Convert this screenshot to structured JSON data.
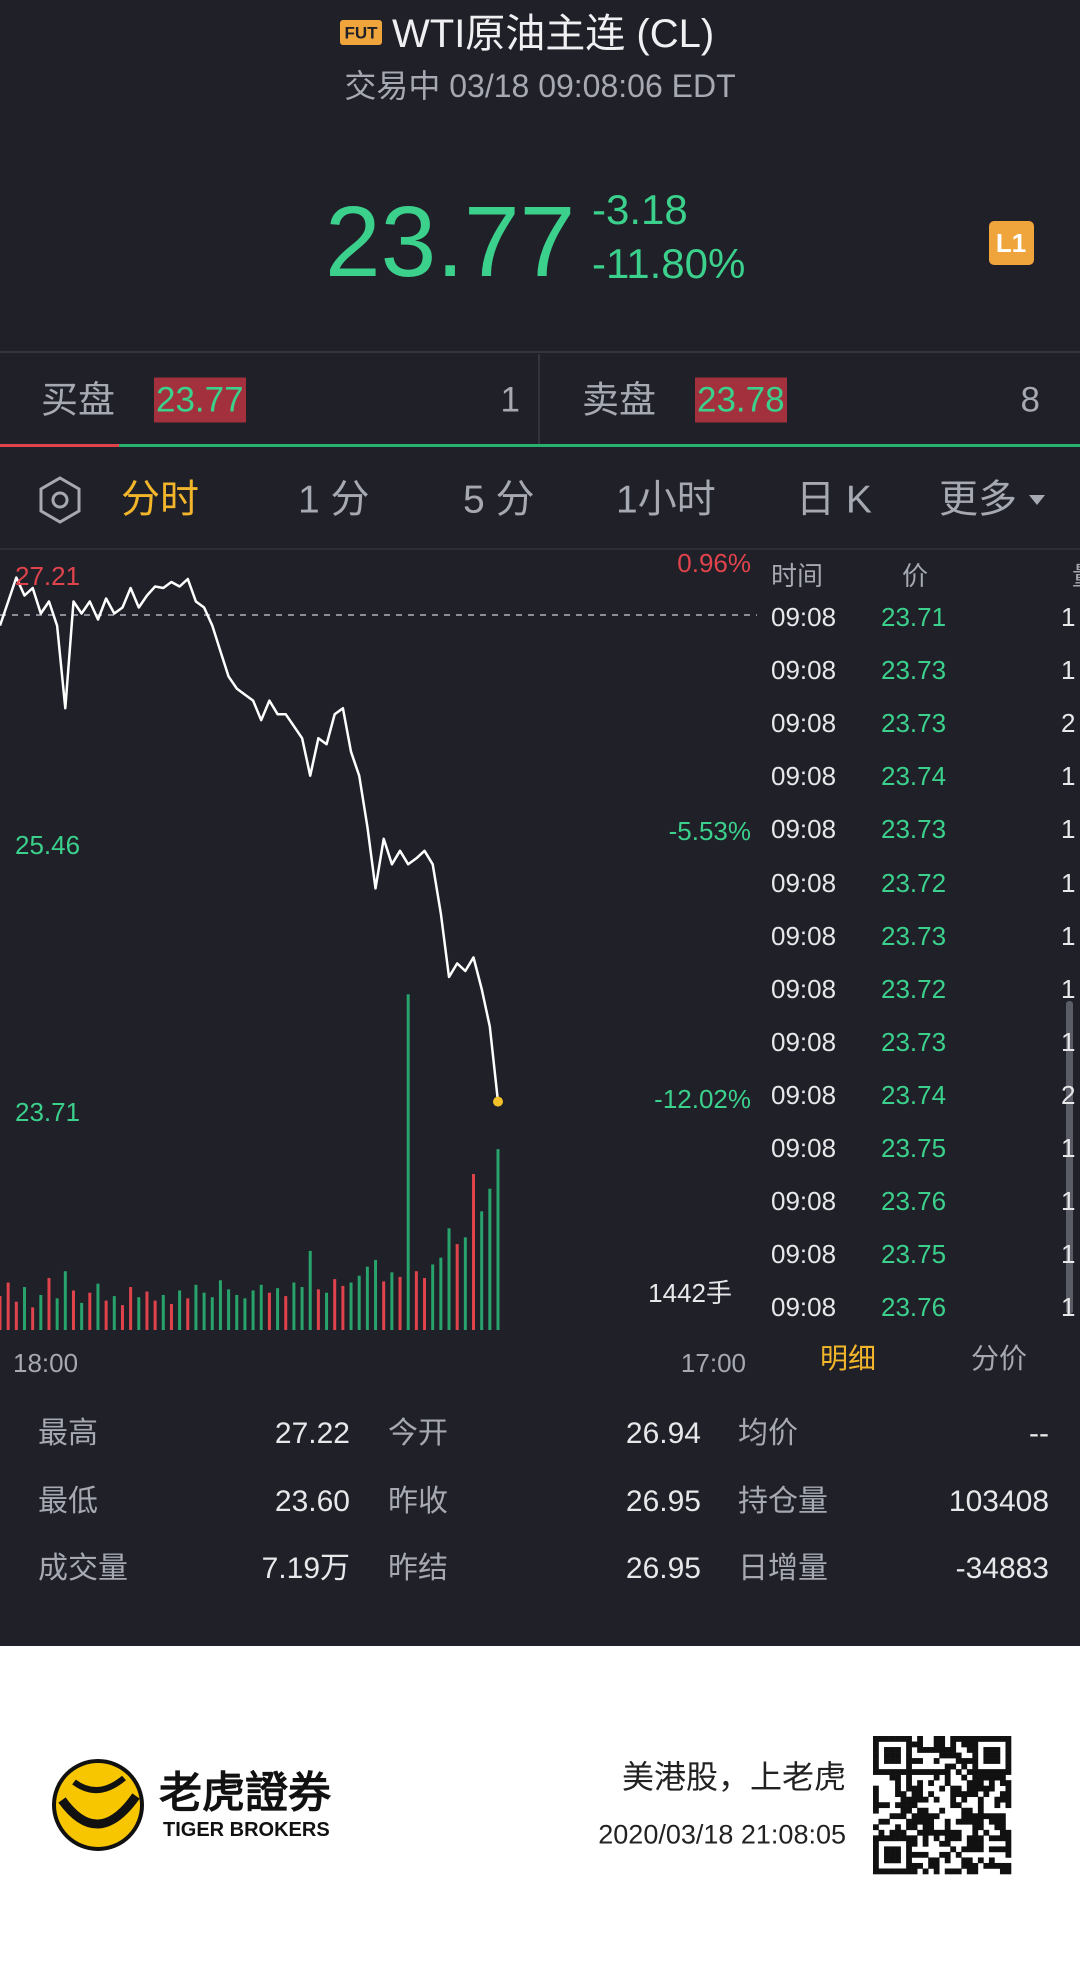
{
  "header": {
    "badge": "FUT",
    "title": "WTI原油主连 (CL)",
    "status": "交易中 03/18 09:08:06 EDT"
  },
  "quote": {
    "price": "23.77",
    "change": "-3.18",
    "change_pct": "-11.80%",
    "level": "L1"
  },
  "orderbook": {
    "bid_label": "买盘",
    "bid_price": "23.77",
    "bid_size": "1",
    "ask_label": "卖盘",
    "ask_price": "23.78",
    "ask_size": "8"
  },
  "tabs": [
    "分时",
    "1 分",
    "5 分",
    "1小时",
    "日 K",
    "更多"
  ],
  "chart": {
    "price_labels": [
      "27.21",
      "25.46",
      "23.71"
    ],
    "pct_labels": [
      "0.96%",
      "-5.53%",
      "-12.02%"
    ],
    "time_labels": [
      "18:00",
      "17:00"
    ],
    "volume_label": "1442手",
    "prices": [
      26.88,
      27.04,
      27.2,
      27.08,
      27.13,
      26.96,
      27.04,
      26.88,
      26.33,
      27.04,
      26.96,
      27.04,
      26.92,
      27.06,
      26.96,
      27.0,
      27.13,
      27.0,
      27.08,
      27.14,
      27.13,
      27.17,
      27.14,
      27.19,
      27.04,
      27.0,
      26.88,
      26.71,
      26.54,
      26.46,
      26.42,
      26.38,
      26.25,
      26.38,
      26.29,
      26.29,
      26.21,
      26.13,
      25.88,
      26.13,
      26.09,
      26.29,
      26.33,
      26.04,
      25.88,
      25.54,
      25.13,
      25.46,
      25.29,
      25.38,
      25.29,
      25.33,
      25.38,
      25.29,
      24.96,
      24.54,
      24.63,
      24.58,
      24.67,
      24.46,
      24.21,
      23.71
    ],
    "volumes": [
      300,
      420,
      250,
      380,
      200,
      310,
      460,
      280,
      520,
      350,
      240,
      330,
      410,
      260,
      300,
      220,
      380,
      290,
      340,
      260,
      310,
      230,
      350,
      280,
      400,
      330,
      290,
      440,
      360,
      310,
      280,
      350,
      400,
      330,
      370,
      300,
      420,
      380,
      700,
      360,
      330,
      450,
      390,
      420,
      480,
      560,
      620,
      430,
      510,
      470,
      2970,
      520,
      460,
      580,
      640,
      900,
      760,
      820,
      1380,
      1050,
      1250,
      1600
    ]
  },
  "trades": {
    "headers": [
      "时间",
      "价",
      "量"
    ],
    "rows": [
      [
        "09:08",
        "23.71",
        "1"
      ],
      [
        "09:08",
        "23.73",
        "1"
      ],
      [
        "09:08",
        "23.73",
        "2"
      ],
      [
        "09:08",
        "23.74",
        "1"
      ],
      [
        "09:08",
        "23.73",
        "1"
      ],
      [
        "09:08",
        "23.72",
        "1"
      ],
      [
        "09:08",
        "23.73",
        "1"
      ],
      [
        "09:08",
        "23.72",
        "1"
      ],
      [
        "09:08",
        "23.73",
        "1"
      ],
      [
        "09:08",
        "23.74",
        "2"
      ],
      [
        "09:08",
        "23.75",
        "1"
      ],
      [
        "09:08",
        "23.76",
        "1"
      ],
      [
        "09:08",
        "23.75",
        "1"
      ],
      [
        "09:08",
        "23.76",
        "1"
      ]
    ],
    "tabs": [
      "明细",
      "分价"
    ]
  },
  "stats": [
    [
      "最高",
      "27.22"
    ],
    [
      "今开",
      "26.94"
    ],
    [
      "均价",
      "--"
    ],
    [
      "最低",
      "23.60"
    ],
    [
      "昨收",
      "26.95"
    ],
    [
      "持仓量",
      "103408"
    ],
    [
      "成交量",
      "7.19万"
    ],
    [
      "昨结",
      "26.95"
    ],
    [
      "日增量",
      "-34883"
    ]
  ],
  "footer": {
    "brand": "老虎證券",
    "brand_en": "TIGER BROKERS",
    "slogan": "美港股，上老虎",
    "timestamp": "2020/03/18 21:08:05"
  }
}
